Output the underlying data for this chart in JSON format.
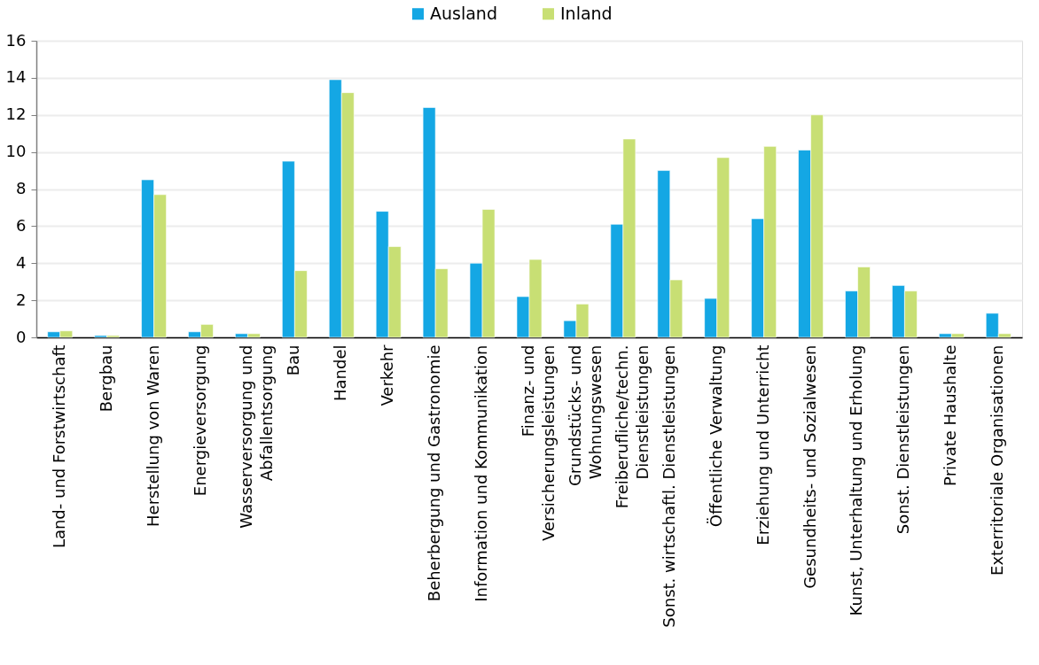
{
  "chart_data": {
    "type": "bar",
    "categories": [
      "Land- und Forstwirtschaft",
      "Bergbau",
      "Herstellung von Waren",
      "Energieversorgung",
      "Wasserversorgung und\nAbfallentsorgung",
      "Bau",
      "Handel",
      "Verkehr",
      "Beherbergung und Gastronomie",
      "Information und Kommunikation",
      "Finanz- und\nVersicherungsleistungen",
      "Grundstücks- und\nWohnungswesen",
      "Freiberufliche/techn.\nDienstleistungen",
      "Sonst. wirtschaftl. Dienstleistungen",
      "Öffentliche Verwaltung",
      "Erziehung und Unterricht",
      "Gesundheits- und Sozialwesen",
      "Kunst, Unterhaltung und Erholung",
      "Sonst. Dienstleistungen",
      "Private Haushalte",
      "Exterritoriale Organisationen"
    ],
    "series": [
      {
        "name": "Ausland",
        "color": "#14a7e4",
        "values": [
          0.3,
          0.1,
          8.5,
          0.3,
          0.2,
          9.5,
          13.9,
          6.8,
          12.4,
          4.0,
          2.2,
          0.9,
          6.1,
          9.0,
          2.1,
          6.4,
          10.1,
          2.5,
          2.8,
          0.2,
          1.3
        ]
      },
      {
        "name": "Inland",
        "color": "#c8df74",
        "values": [
          0.35,
          0.1,
          7.7,
          0.7,
          0.2,
          3.6,
          13.2,
          4.9,
          3.7,
          6.9,
          4.2,
          1.8,
          10.7,
          3.1,
          9.7,
          10.3,
          12.0,
          3.8,
          2.5,
          0.2,
          0.2
        ]
      }
    ],
    "ylim": [
      0,
      16
    ],
    "yticks": [
      0,
      2,
      4,
      6,
      8,
      10,
      12,
      14,
      16
    ],
    "grid": "y",
    "legend": "top"
  }
}
